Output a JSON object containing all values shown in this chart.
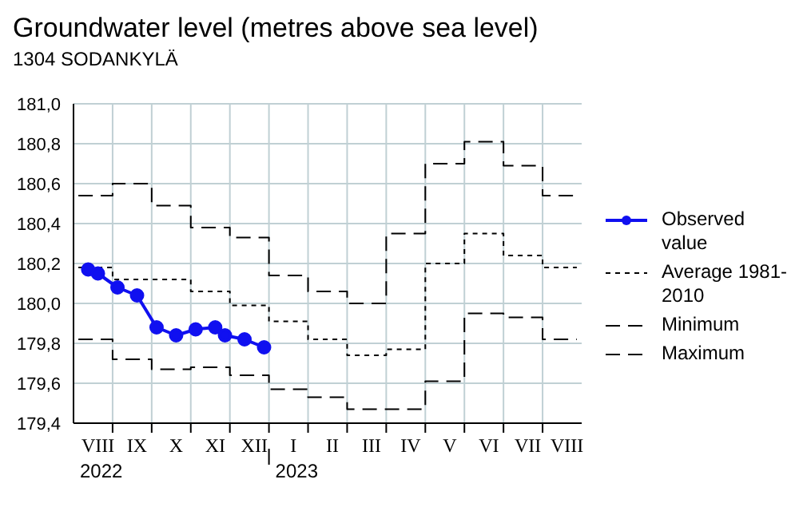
{
  "chart_data": {
    "type": "line",
    "title": "Groundwater level (metres above sea level)",
    "subtitle": "1304 SODANKYLÄ",
    "categories": [
      null,
      null,
      "VIII",
      null,
      null,
      null,
      "IX",
      null,
      null,
      null,
      "X",
      null,
      null,
      null,
      "XI",
      null,
      null,
      null,
      "XII",
      null,
      null,
      null,
      "I",
      null,
      null,
      null,
      "II",
      null,
      null,
      null,
      "III",
      null,
      null,
      null,
      "IV",
      null,
      null,
      null,
      "V",
      null,
      null,
      null,
      "VI",
      null,
      null,
      null,
      "VII",
      null,
      null,
      null,
      "VIII",
      null
    ],
    "annotations": [
      "2022",
      "2023"
    ],
    "ylim": [
      179.4,
      181.0
    ],
    "yticks": [
      {
        "value": 179.4,
        "label": "179,4"
      },
      {
        "value": 179.6,
        "label": "179,6"
      },
      {
        "value": 179.8,
        "label": "179,8"
      },
      {
        "value": 180.0,
        "label": "180,0"
      },
      {
        "value": 180.2,
        "label": "180,2"
      },
      {
        "value": 180.4,
        "label": "180,4"
      },
      {
        "value": 180.6,
        "label": "180,6"
      },
      {
        "value": 180.8,
        "label": "180,8"
      },
      {
        "value": 181.0,
        "label": "181,0"
      }
    ],
    "grid": true,
    "legend": "right",
    "series": [
      {
        "name": "Observed value",
        "type": "line",
        "color": "#1010f0",
        "marker": "circle",
        "line_style": "solid",
        "values": [
          null,
          180.17,
          180.15,
          null,
          180.08,
          null,
          180.04,
          null,
          179.88,
          null,
          179.84,
          null,
          179.87,
          null,
          179.88,
          179.84,
          null,
          179.82,
          null,
          179.78,
          null,
          null,
          null,
          null,
          null,
          null,
          null,
          null,
          null,
          null,
          null,
          null,
          null,
          null,
          null,
          null,
          null,
          null,
          null,
          null,
          null,
          null,
          null,
          null,
          null,
          null,
          null,
          null,
          null,
          null,
          null,
          null
        ]
      },
      {
        "name": "Average 1981-2010",
        "type": "step",
        "color": "#000000",
        "marker": "none",
        "line_style": "dotted",
        "values": [
          180.18,
          180.18,
          180.18,
          180.18,
          180.12,
          180.12,
          180.12,
          180.12,
          180.12,
          180.12,
          180.12,
          180.12,
          180.06,
          180.06,
          180.06,
          180.06,
          179.99,
          179.99,
          179.99,
          179.99,
          179.91,
          179.91,
          179.91,
          179.91,
          179.82,
          179.82,
          179.82,
          179.82,
          179.74,
          179.74,
          179.74,
          179.74,
          179.77,
          179.77,
          179.77,
          179.77,
          180.2,
          180.2,
          180.2,
          180.2,
          180.35,
          180.35,
          180.35,
          180.35,
          180.24,
          180.24,
          180.24,
          180.24,
          180.18,
          180.18,
          180.18,
          180.18
        ]
      },
      {
        "name": "Minimum",
        "type": "step",
        "color": "#000000",
        "marker": "none",
        "line_style": "dashed",
        "values": [
          179.82,
          179.82,
          179.82,
          179.82,
          179.72,
          179.72,
          179.72,
          179.72,
          179.67,
          179.67,
          179.67,
          179.67,
          179.68,
          179.68,
          179.68,
          179.68,
          179.64,
          179.64,
          179.64,
          179.64,
          179.57,
          179.57,
          179.57,
          179.57,
          179.53,
          179.53,
          179.53,
          179.53,
          179.47,
          179.47,
          179.47,
          179.47,
          179.47,
          179.47,
          179.47,
          179.47,
          179.61,
          179.61,
          179.61,
          179.61,
          179.95,
          179.95,
          179.95,
          179.95,
          179.93,
          179.93,
          179.93,
          179.93,
          179.82,
          179.82,
          179.82,
          179.82
        ]
      },
      {
        "name": "Maximum",
        "type": "step",
        "color": "#000000",
        "marker": "none",
        "line_style": "dashed",
        "values": [
          180.54,
          180.54,
          180.54,
          180.54,
          180.6,
          180.6,
          180.6,
          180.6,
          180.49,
          180.49,
          180.49,
          180.49,
          180.38,
          180.38,
          180.38,
          180.38,
          180.33,
          180.33,
          180.33,
          180.33,
          180.14,
          180.14,
          180.14,
          180.14,
          180.06,
          180.06,
          180.06,
          180.06,
          180.0,
          180.0,
          180.0,
          180.0,
          180.35,
          180.35,
          180.35,
          180.35,
          180.7,
          180.7,
          180.7,
          180.7,
          180.81,
          180.81,
          180.81,
          180.81,
          180.69,
          180.69,
          180.69,
          180.69,
          180.54,
          180.54,
          180.54,
          180.54
        ]
      }
    ]
  }
}
